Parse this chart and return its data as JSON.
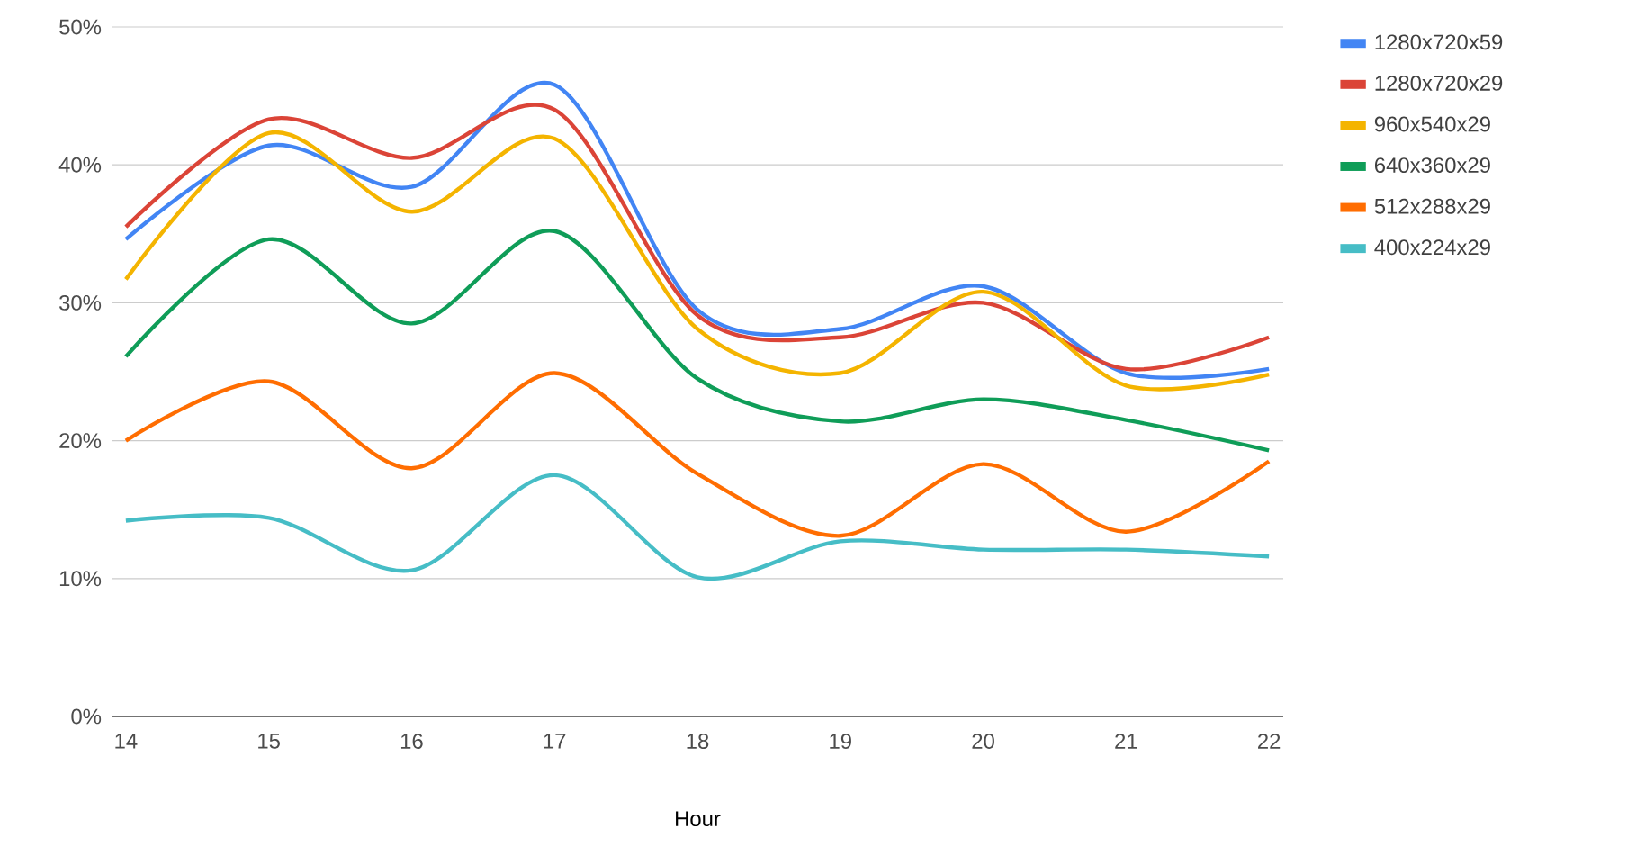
{
  "chart_data": {
    "type": "line",
    "xlabel": "Hour",
    "x": [
      14,
      15,
      16,
      17,
      18,
      19,
      20,
      21,
      22
    ],
    "series": [
      {
        "name": "1280x720x59",
        "color": "#4285f4",
        "values": [
          34.6,
          41.4,
          38.4,
          45.8,
          29.5,
          28.1,
          31.2,
          24.9,
          25.2
        ]
      },
      {
        "name": "1280x720x29",
        "color": "#db4437",
        "values": [
          35.5,
          43.3,
          40.5,
          44.0,
          29.1,
          27.5,
          30.0,
          25.2,
          27.5
        ]
      },
      {
        "name": "960x540x29",
        "color": "#f4b400",
        "values": [
          31.7,
          42.3,
          36.6,
          41.9,
          28.1,
          24.9,
          30.8,
          24.0,
          24.8
        ]
      },
      {
        "name": "640x360x29",
        "color": "#0f9d58",
        "values": [
          26.1,
          34.6,
          28.5,
          35.2,
          24.5,
          21.4,
          23.0,
          21.5,
          19.3
        ]
      },
      {
        "name": "512x288x29",
        "color": "#ff6d01",
        "values": [
          20.0,
          24.3,
          18.0,
          24.9,
          17.6,
          13.1,
          18.3,
          13.4,
          18.5
        ]
      },
      {
        "name": "400x224x29",
        "color": "#46bdc6",
        "values": [
          14.2,
          14.4,
          10.6,
          17.5,
          10.1,
          12.7,
          12.1,
          12.1,
          11.6
        ]
      }
    ],
    "xlim": [
      13.9,
      22.1
    ],
    "ylim": [
      0,
      50
    ],
    "xticks": [
      14,
      15,
      16,
      17,
      18,
      19,
      20,
      21,
      22
    ],
    "yticks": [
      {
        "value": 0,
        "label": "0%"
      },
      {
        "value": 10,
        "label": "10%"
      },
      {
        "value": 20,
        "label": "20%"
      },
      {
        "value": 30,
        "label": "30%"
      },
      {
        "value": 40,
        "label": "40%"
      },
      {
        "value": 50,
        "label": "50%"
      }
    ],
    "grid": "y",
    "legend": "right"
  }
}
